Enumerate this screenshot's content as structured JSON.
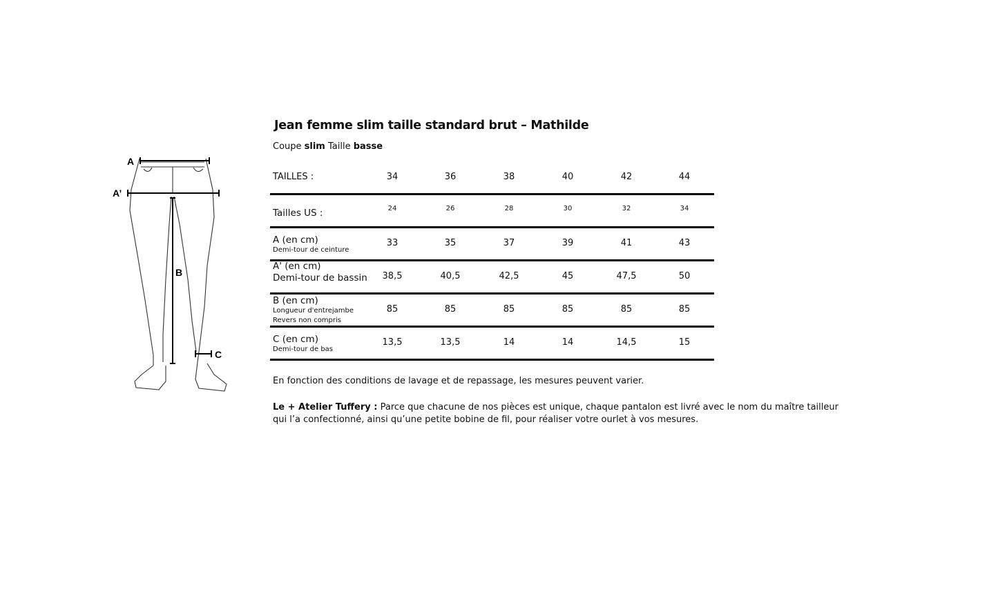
{
  "title": "Jean femme slim taille standard brut – Mathilde",
  "subtitle": {
    "p1": "Coupe ",
    "b1": "slim",
    "p2": " Taille ",
    "b2": "basse"
  },
  "drawing": {
    "labels": {
      "a": "A",
      "a_prime": "A’",
      "b": "B",
      "c": "C"
    }
  },
  "table": {
    "header": {
      "label": "TAILLES :",
      "values": [
        "34",
        "36",
        "38",
        "40",
        "42",
        "44"
      ]
    },
    "rows": [
      {
        "main": "Tailles US :",
        "sub": [],
        "values": [
          "24",
          "26",
          "28",
          "30",
          "32",
          "34"
        ]
      },
      {
        "main": "A (en cm)",
        "sub": [
          "Demi-tour de ceinture"
        ],
        "values": [
          "33",
          "35",
          "37",
          "39",
          "41",
          "43"
        ]
      },
      {
        "main": "A' (en cm)",
        "sub": [
          "Demi-tour de bassin"
        ],
        "values": [
          "38,5",
          "40,5",
          "42,5",
          "45",
          "47,5",
          "50"
        ]
      },
      {
        "main": "B (en cm)",
        "sub": [
          "Longueur d'entrejambe",
          "Revers non compris"
        ],
        "values": [
          "85",
          "85",
          "85",
          "85",
          "85",
          "85"
        ]
      },
      {
        "main": "C (en cm)",
        "sub": [
          "Demi-tour de bas"
        ],
        "values": [
          "13,5",
          "13,5",
          "14",
          "14",
          "14,5",
          "15"
        ]
      }
    ]
  },
  "notes": {
    "washing": "En fonction des conditions de lavage et de repassage, les mesures peuvent varier.",
    "atelier_bold": "Le + Atelier Tuffery :",
    "atelier_text": " Parce que chacune de nos pièces est unique, chaque pantalon est livré avec le nom du maître tailleur qui l’a confectionné, ainsi qu’une petite bobine de fil, pour réaliser votre ourlet à vos mesures."
  }
}
